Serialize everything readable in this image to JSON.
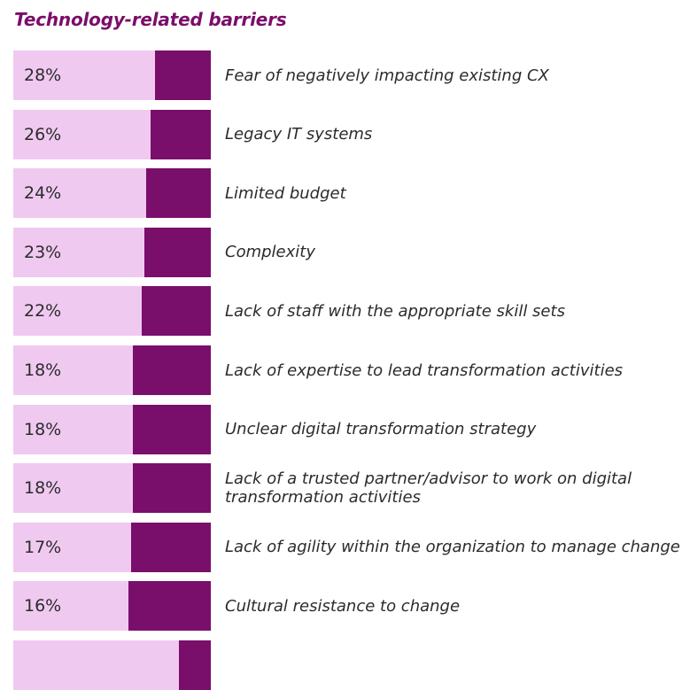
{
  "title": "Technology-related barriers",
  "colors": {
    "title": "#7a0e6b",
    "bar_light": "#f0c9f0",
    "bar_dark": "#7a0e6b",
    "text": "#2b2b2b"
  },
  "chart_data": {
    "type": "bar",
    "title": "Technology-related barriers",
    "categories": [
      "Fear of negatively impacting existing CX",
      "Legacy IT systems",
      "Limited budget",
      "Complexity",
      "Lack of staff with the appropriate skill sets",
      "Lack of expertise to lead transformation activities",
      "Unclear digital transformation strategy",
      "Lack of a trusted partner/advisor to work on digital transformation activities",
      "Lack of agility within the organization to manage change",
      "Cultural resistance to change",
      ""
    ],
    "values": [
      28,
      26,
      24,
      23,
      22,
      18,
      18,
      18,
      17,
      16,
      null
    ],
    "value_labels": [
      "28%",
      "26%",
      "24%",
      "23%",
      "22%",
      "18%",
      "18%",
      "18%",
      "17%",
      "16%",
      ""
    ],
    "unit": "%",
    "orientation": "horizontal"
  }
}
